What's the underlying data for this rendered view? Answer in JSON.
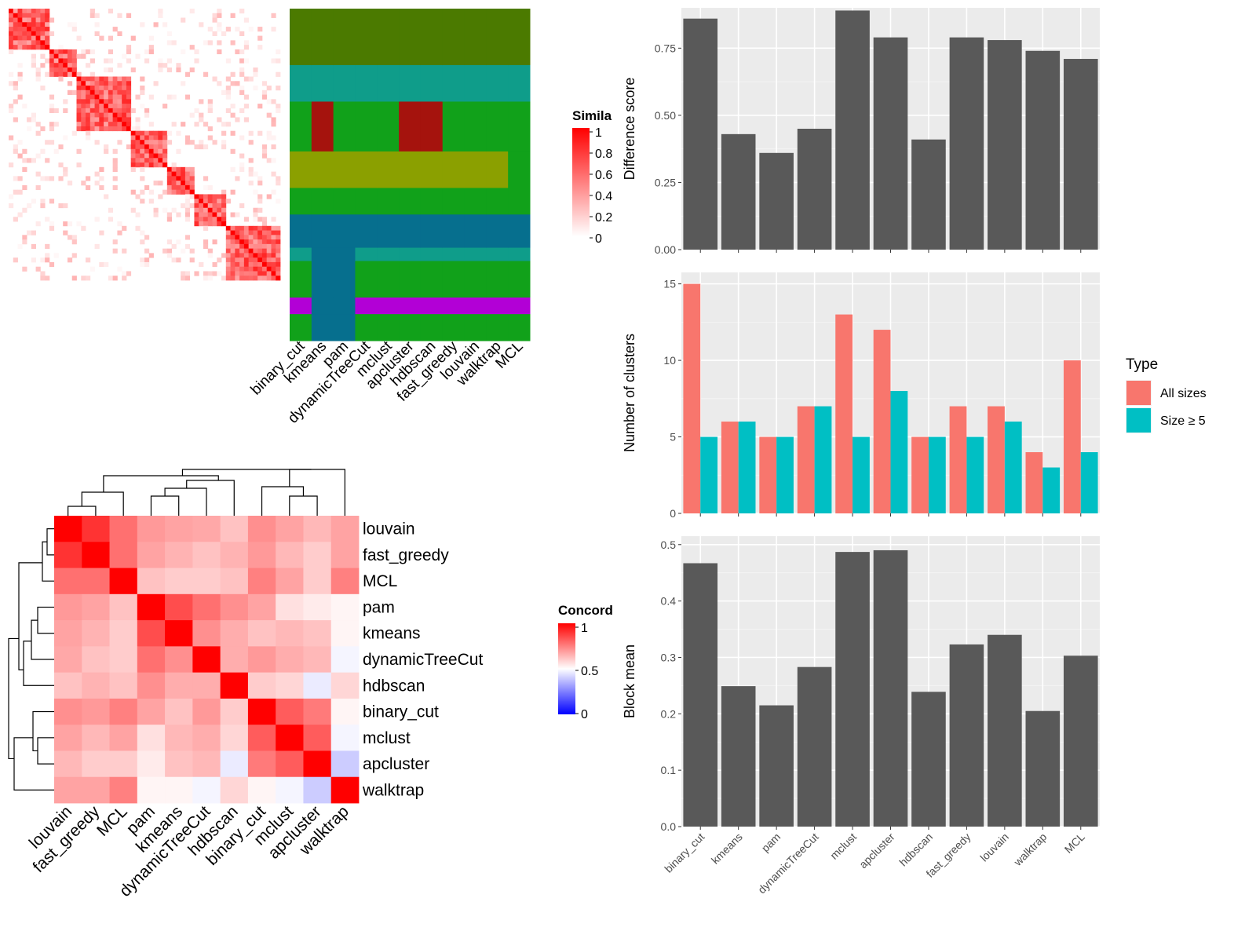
{
  "similarity_panel": {
    "legend_title": "Simila",
    "legend_ticks": [
      "1",
      "0.8",
      "0.6",
      "0.4",
      "0.2",
      "0"
    ],
    "columns": [
      "binary_cut",
      "kmeans",
      "pam",
      "dynamicTreeCut",
      "mclust",
      "apcluster",
      "hdbscan",
      "fast_greedy",
      "louvain",
      "walktrap",
      "MCL"
    ],
    "color_low": "#ffffff",
    "color_high": "#ff0000"
  },
  "concordance_panel": {
    "legend_title": "Concord",
    "legend_ticks": [
      "1",
      "0.5",
      "0"
    ],
    "rows": [
      "louvain",
      "fast_greedy",
      "MCL",
      "pam",
      "kmeans",
      "dynamicTreeCut",
      "hdbscan",
      "binary_cut",
      "mclust",
      "apcluster",
      "walktrap"
    ],
    "columns": [
      "louvain",
      "fast_greedy",
      "MCL",
      "pam",
      "kmeans",
      "dynamicTreeCut",
      "hdbscan",
      "binary_cut",
      "mclust",
      "apcluster",
      "walktrap"
    ],
    "color_low": "#0000ff",
    "color_mid": "#ffffff",
    "color_high": "#ff0000"
  },
  "chart_data": [
    {
      "type": "heatmap",
      "title": "",
      "legend_title": "Concord",
      "rows": [
        "louvain",
        "fast_greedy",
        "MCL",
        "pam",
        "kmeans",
        "dynamicTreeCut",
        "hdbscan",
        "binary_cut",
        "mclust",
        "apcluster",
        "walktrap"
      ],
      "columns": [
        "louvain",
        "fast_greedy",
        "MCL",
        "pam",
        "kmeans",
        "dynamicTreeCut",
        "hdbscan",
        "binary_cut",
        "mclust",
        "apcluster",
        "walktrap"
      ],
      "values": [
        [
          1.0,
          0.9,
          0.78,
          0.7,
          0.68,
          0.67,
          0.62,
          0.72,
          0.68,
          0.64,
          0.68
        ],
        [
          0.9,
          1.0,
          0.78,
          0.68,
          0.65,
          0.62,
          0.65,
          0.7,
          0.64,
          0.6,
          0.68
        ],
        [
          0.78,
          0.78,
          1.0,
          0.62,
          0.6,
          0.6,
          0.62,
          0.75,
          0.68,
          0.6,
          0.75
        ],
        [
          0.7,
          0.68,
          0.62,
          1.0,
          0.85,
          0.78,
          0.72,
          0.68,
          0.56,
          0.54,
          0.52
        ],
        [
          0.68,
          0.65,
          0.6,
          0.85,
          1.0,
          0.72,
          0.66,
          0.62,
          0.64,
          0.62,
          0.52
        ],
        [
          0.67,
          0.62,
          0.6,
          0.78,
          0.72,
          1.0,
          0.66,
          0.7,
          0.66,
          0.64,
          0.48
        ],
        [
          0.62,
          0.65,
          0.62,
          0.72,
          0.66,
          0.66,
          1.0,
          0.6,
          0.58,
          0.46,
          0.58
        ],
        [
          0.72,
          0.7,
          0.75,
          0.68,
          0.62,
          0.7,
          0.6,
          1.0,
          0.82,
          0.76,
          0.52
        ],
        [
          0.68,
          0.64,
          0.68,
          0.56,
          0.64,
          0.66,
          0.58,
          0.82,
          1.0,
          0.82,
          0.48
        ],
        [
          0.64,
          0.6,
          0.6,
          0.54,
          0.62,
          0.64,
          0.46,
          0.76,
          0.82,
          1.0,
          0.4
        ],
        [
          0.68,
          0.68,
          0.75,
          0.52,
          0.52,
          0.48,
          0.58,
          0.52,
          0.48,
          0.4,
          1.0
        ]
      ],
      "range": [
        0,
        1
      ]
    },
    {
      "type": "bar",
      "title": "",
      "xlabel": "",
      "ylabel": "Difference score",
      "categories": [
        "binary_cut",
        "kmeans",
        "pam",
        "dynamicTreeCut",
        "mclust",
        "apcluster",
        "hdbscan",
        "fast_greedy",
        "louvain",
        "walktrap",
        "MCL"
      ],
      "values": [
        0.86,
        0.43,
        0.36,
        0.45,
        0.89,
        0.79,
        0.41,
        0.79,
        0.78,
        0.74,
        0.71
      ],
      "ylim": [
        0,
        0.9
      ],
      "yticks": [
        "0.00",
        "0.25",
        "0.50",
        "0.75"
      ],
      "bar_color": "#595959",
      "grid": true
    },
    {
      "type": "bar",
      "title": "",
      "xlabel": "",
      "ylabel": "Number of clusters",
      "legend_title": "Type",
      "legend_position": "right",
      "categories": [
        "binary_cut",
        "kmeans",
        "pam",
        "dynamicTreeCut",
        "mclust",
        "apcluster",
        "hdbscan",
        "fast_greedy",
        "louvain",
        "walktrap",
        "MCL"
      ],
      "series": [
        {
          "name": "All sizes",
          "color": "#f8766d",
          "values": [
            15,
            6,
            5,
            7,
            13,
            12,
            5,
            7,
            7,
            4,
            10
          ]
        },
        {
          "name": "Size ≥ 5",
          "color": "#00bfc4",
          "values": [
            5,
            6,
            5,
            7,
            5,
            8,
            5,
            5,
            6,
            3,
            4
          ]
        }
      ],
      "ylim": [
        0,
        15.75
      ],
      "yticks": [
        "0",
        "5",
        "10",
        "15"
      ],
      "grid": true
    },
    {
      "type": "bar",
      "title": "",
      "xlabel": "",
      "ylabel": "Block mean",
      "categories": [
        "binary_cut",
        "kmeans",
        "pam",
        "dynamicTreeCut",
        "mclust",
        "apcluster",
        "hdbscan",
        "fast_greedy",
        "louvain",
        "walktrap",
        "MCL"
      ],
      "values": [
        0.467,
        0.249,
        0.215,
        0.283,
        0.487,
        0.49,
        0.239,
        0.323,
        0.34,
        0.205,
        0.303
      ],
      "ylim": [
        0,
        0.515
      ],
      "yticks": [
        "0.0",
        "0.1",
        "0.2",
        "0.3",
        "0.4",
        "0.5"
      ],
      "bar_color": "#595959",
      "grid": true
    }
  ]
}
